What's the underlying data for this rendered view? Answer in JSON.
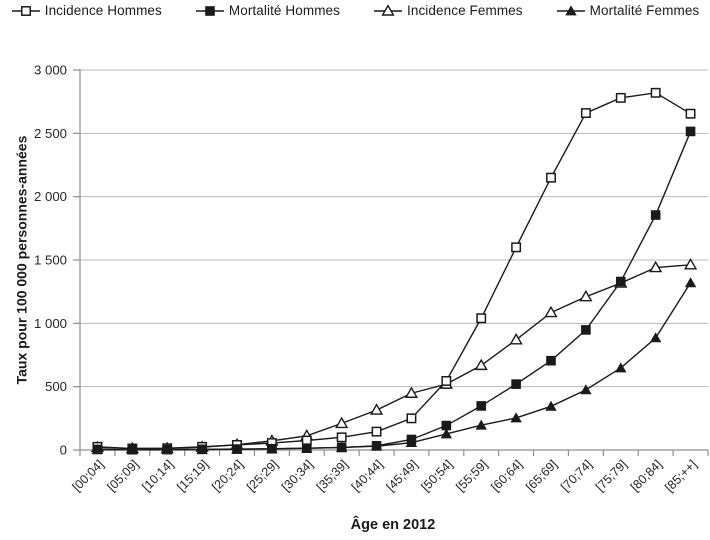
{
  "figure": {
    "background": "#ffffff",
    "series_color": "#1a1a1a",
    "text_color": "#262626",
    "gridline_color": "#bababa",
    "axis_color": "#8f8f8f"
  },
  "chart_data": {
    "type": "line",
    "title": "",
    "xlabel": "Âge en 2012",
    "ylabel": "Taux pour 100 000 personnes-années",
    "ylim": [
      0,
      3000
    ],
    "ytick_step": 500,
    "ytick_labels": [
      "0",
      "500",
      "1 000",
      "1 500",
      "2 000",
      "2 500",
      "3 000"
    ],
    "grid": "horizontal-only",
    "legend_position": "top",
    "x_label_rotation_deg": -45,
    "categories": [
      "[00;04]",
      "[05;09]",
      "[10;14]",
      "[15;19]",
      "[20;24]",
      "[25;29]",
      "[30;34]",
      "[35;39]",
      "[40;44]",
      "[45;49]",
      "[50;54]",
      "[55;59]",
      "[60;64]",
      "[65;69]",
      "[70;74]",
      "[75;79]",
      "[80;84]",
      "[85;++]"
    ],
    "series": [
      {
        "name": "Incidence Hommes",
        "marker": "square-open",
        "values": [
          25,
          12,
          14,
          25,
          40,
          55,
          75,
          100,
          145,
          250,
          545,
          1040,
          1600,
          2150,
          2660,
          2780,
          2820,
          2655
        ]
      },
      {
        "name": "Mortalité Hommes",
        "marker": "square-filled",
        "values": [
          4,
          2,
          3,
          5,
          7,
          10,
          14,
          20,
          33,
          83,
          193,
          348,
          520,
          705,
          948,
          1330,
          1855,
          2515
        ]
      },
      {
        "name": "Incidence Femmes",
        "marker": "triangle-open",
        "values": [
          20,
          11,
          12,
          22,
          42,
          72,
          112,
          210,
          315,
          448,
          520,
          668,
          870,
          1085,
          1210,
          1318,
          1440,
          1462
        ]
      },
      {
        "name": "Mortalité Femmes",
        "marker": "triangle-filled",
        "values": [
          3,
          2,
          2,
          4,
          6,
          9,
          13,
          20,
          30,
          58,
          127,
          196,
          253,
          345,
          475,
          648,
          885,
          1320
        ]
      }
    ]
  }
}
